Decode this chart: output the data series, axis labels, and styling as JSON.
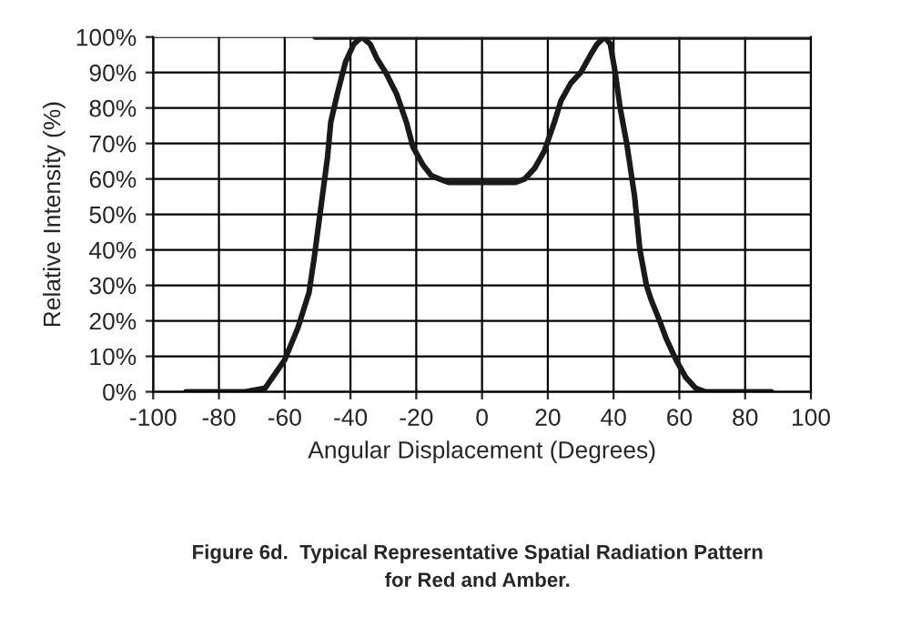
{
  "chart_data": {
    "type": "line",
    "title": "Figure 6d.  Typical Representative Spatial Radiation Pattern\nfor Red and Amber.",
    "xlabel": "Angular Displacement (Degrees)",
    "ylabel": "Relative Intensity (%)",
    "series": [
      {
        "color": "#1a1a1a",
        "x": [
          -90,
          -72,
          -66,
          -60,
          -56,
          -52.6,
          -51,
          -49,
          -47,
          -46,
          -44,
          -41.5,
          -39,
          -36.6,
          -34,
          -32,
          -29.3,
          -26,
          -23,
          -21,
          -18,
          -15.5,
          -13,
          -10,
          0,
          10,
          13,
          16,
          19,
          22,
          24,
          27,
          30,
          33,
          35,
          37.3,
          39,
          40.5,
          42,
          44,
          46.4,
          48,
          50,
          51.4,
          54,
          56,
          59,
          62,
          65,
          68,
          88
        ],
        "values": [
          0,
          0,
          1,
          9,
          18,
          28,
          38,
          52,
          66,
          76,
          84,
          93,
          98,
          100,
          98,
          94,
          90,
          84,
          76,
          69,
          64,
          61,
          60,
          59,
          59,
          59,
          60,
          63,
          68,
          76,
          82,
          87,
          90,
          95,
          98,
          100,
          98,
          90,
          80,
          70,
          55,
          40,
          30,
          26,
          20,
          15,
          9,
          4,
          1,
          0,
          0
        ]
      },
      {
        "color": "#1a1a1a",
        "x": [
          -50.7,
          100
        ],
        "values": [
          100,
          100
        ]
      }
    ],
    "xlim": [
      -100,
      100
    ],
    "xticks": [
      -100,
      -80,
      -60,
      -40,
      -20,
      0,
      20,
      40,
      60,
      80,
      100
    ],
    "ylim": [
      0,
      100
    ],
    "yticks": [
      {
        "value": 0,
        "label": "0%"
      },
      {
        "value": 10,
        "label": "10%"
      },
      {
        "value": 20,
        "label": "20%"
      },
      {
        "value": 30,
        "label": "30%"
      },
      {
        "value": 40,
        "label": "40%"
      },
      {
        "value": 50,
        "label": "50%"
      },
      {
        "value": 60,
        "label": "60%"
      },
      {
        "value": 70,
        "label": "70%"
      },
      {
        "value": 80,
        "label": "80%"
      },
      {
        "value": 90,
        "label": "90%"
      },
      {
        "value": 100,
        "label": "100%"
      }
    ],
    "grid": true,
    "line_style": "solid",
    "marker": "none"
  }
}
